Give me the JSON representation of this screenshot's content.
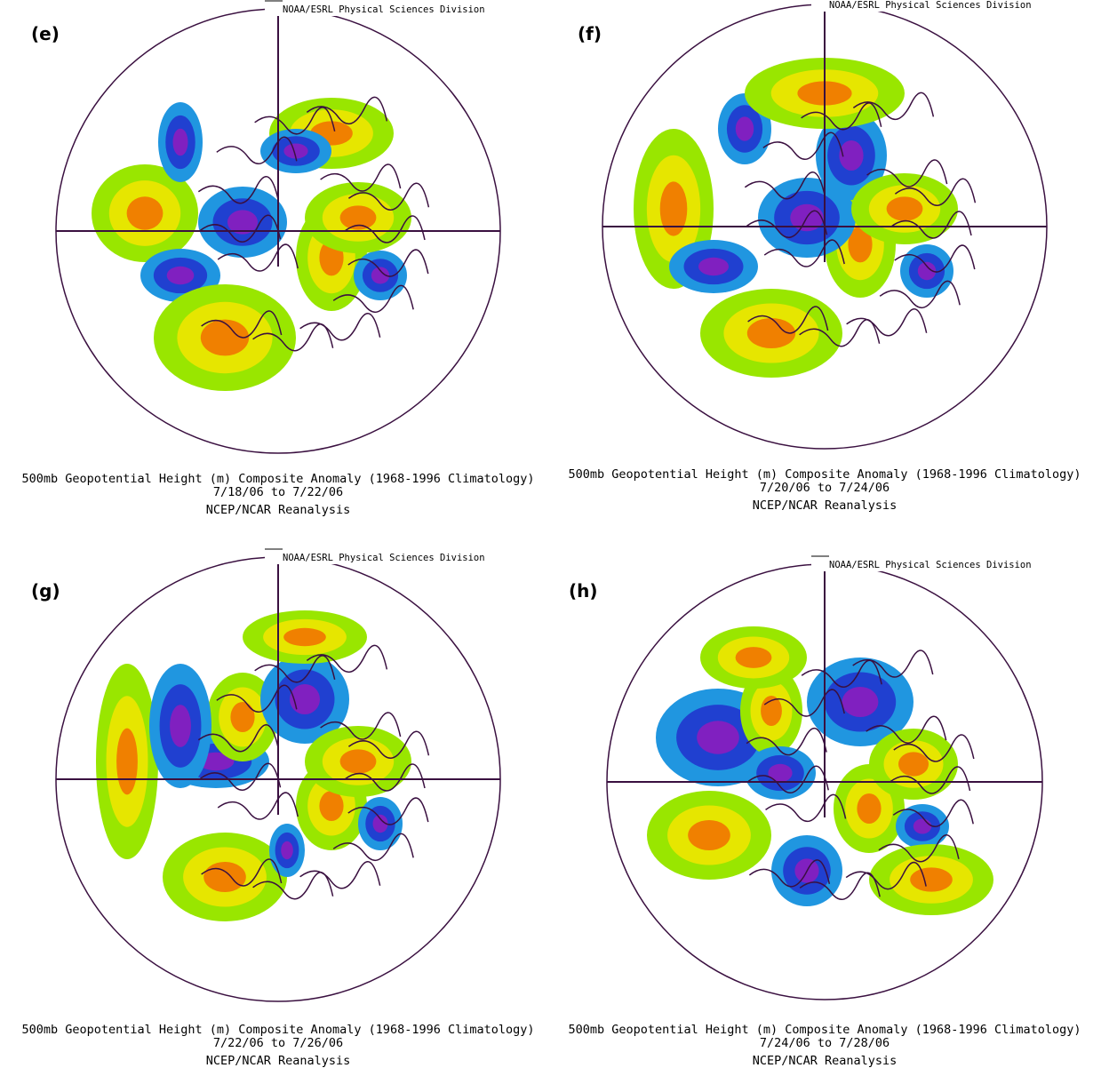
{
  "panels": [
    {
      "label": "(e)",
      "credit": "NOAA/ESRL Physical Sciences Division",
      "caption": [
        "500mb Geopotential Height (m) Composite Anomaly (1968-1996 Climatology)",
        "7/18/06  to 7/22/06",
        "NCEP/NCAR Reanalysis"
      ]
    },
    {
      "label": "(f)",
      "credit": "NOAA/ESRL Physical Sciences Division",
      "caption": [
        "500mb Geopotential Height (m) Composite Anomaly (1968-1996 Climatology)",
        "7/20/06  to 7/24/06",
        "NCEP/NCAR Reanalysis"
      ]
    },
    {
      "label": "(g)",
      "credit": "NOAA/ESRL Physical Sciences Division",
      "caption": [
        "500mb Geopotential Height (m) Composite Anomaly (1968-1996 Climatology)",
        "7/22/06  to 7/26/06",
        "NCEP/NCAR Reanalysis"
      ]
    },
    {
      "label": "(h)",
      "credit": "NOAA/ESRL Physical Sciences Division",
      "caption": [
        "500mb Geopotential Height (m) Composite Anomaly (1968-1996 Climatology)",
        "7/24/06  to 7/28/06",
        "NCEP/NCAR Reanalysis"
      ]
    }
  ]
}
